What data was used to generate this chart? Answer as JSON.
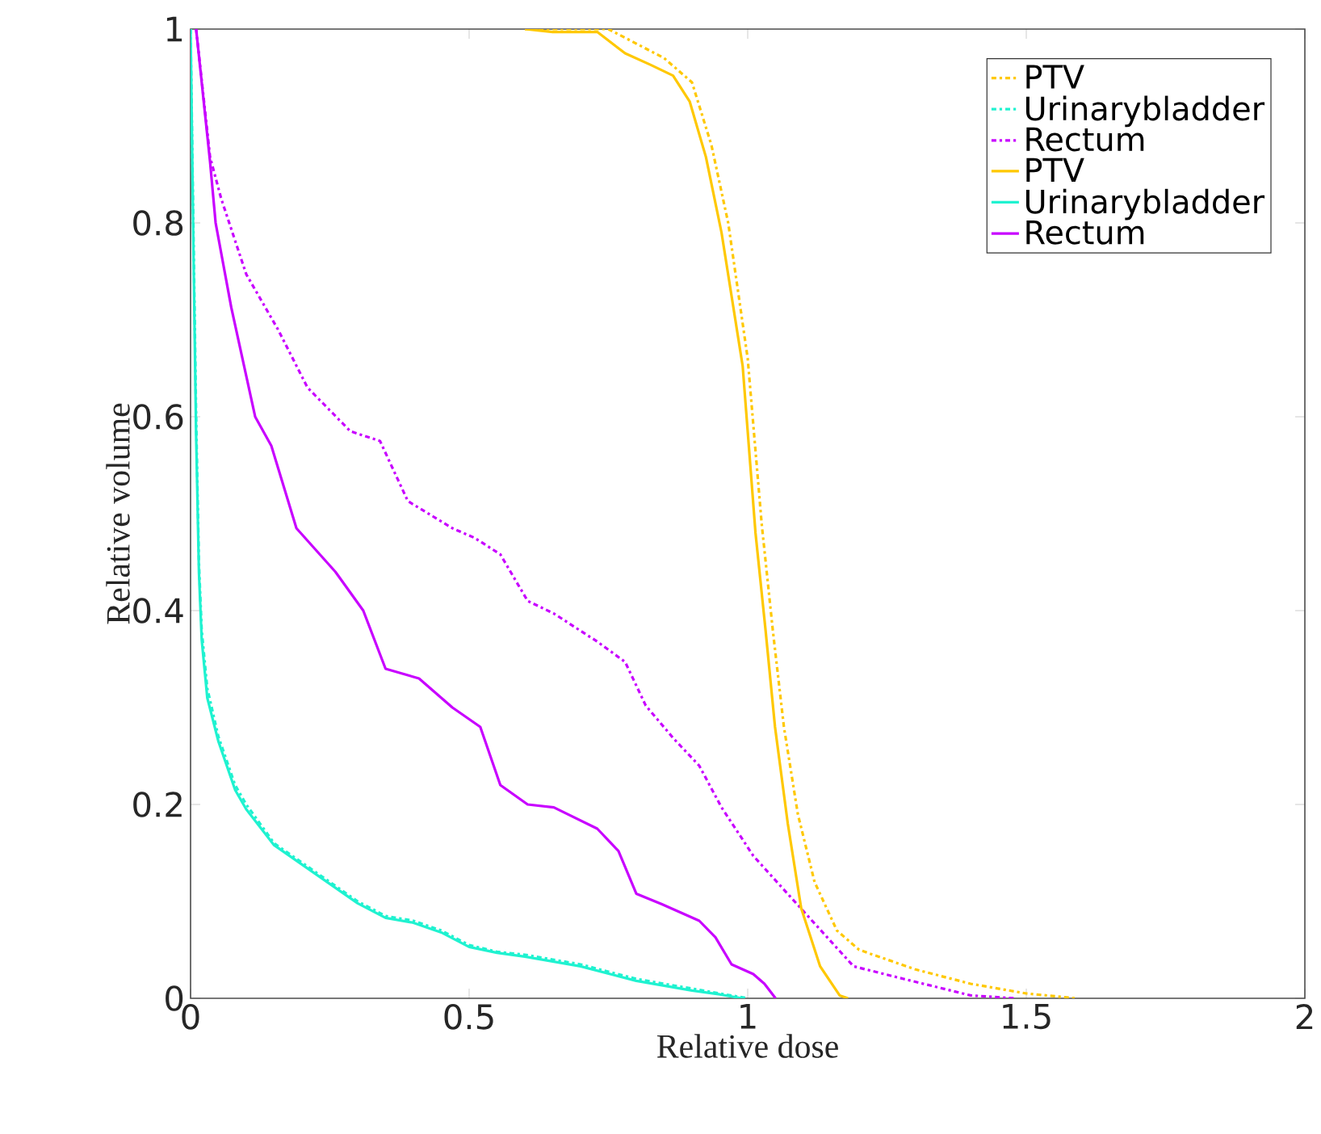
{
  "chart_data": {
    "type": "line",
    "xlabel": "Relative dose",
    "ylabel": "Relative volume",
    "xlim": [
      0,
      2
    ],
    "ylim": [
      0,
      1
    ],
    "xticks": [
      0,
      0.5,
      1,
      1.5,
      2
    ],
    "yticks": [
      0,
      0.2,
      0.4,
      0.6,
      0.8,
      1
    ],
    "grid": false,
    "legend": "top right",
    "marker": "none",
    "series": [
      {
        "name": "PTV",
        "color": "#ffc800",
        "line_style": "dashed",
        "x": [
          0.6,
          0.75,
          0.8,
          0.85,
          0.9,
          0.935,
          0.965,
          1.0,
          1.025,
          1.045,
          1.065,
          1.09,
          1.12,
          1.16,
          1.2,
          1.3,
          1.4,
          1.5,
          1.59
        ],
        "values": [
          1,
          1,
          0.985,
          0.97,
          0.945,
          0.88,
          0.8,
          0.66,
          0.49,
          0.38,
          0.28,
          0.19,
          0.12,
          0.07,
          0.05,
          0.03,
          0.015,
          0.005,
          0
        ]
      },
      {
        "name": "Urinarybladder",
        "color": "#1ff2d0",
        "line_style": "dashed",
        "x": [
          0,
          0.005,
          0.01,
          0.015,
          0.02,
          0.03,
          0.05,
          0.08,
          0.1,
          0.15,
          0.2,
          0.25,
          0.3,
          0.35,
          0.4,
          0.45,
          0.5,
          0.55,
          0.6,
          0.7,
          0.8,
          0.9,
          0.95,
          1.0
        ],
        "values": [
          1,
          0.8,
          0.6,
          0.45,
          0.38,
          0.32,
          0.27,
          0.22,
          0.2,
          0.16,
          0.14,
          0.12,
          0.1,
          0.085,
          0.08,
          0.07,
          0.055,
          0.048,
          0.045,
          0.035,
          0.02,
          0.01,
          0.005,
          0
        ]
      },
      {
        "name": "Rectum",
        "color": "#c800ff",
        "line_style": "dashed",
        "x": [
          0.01,
          0.035,
          0.055,
          0.1,
          0.157,
          0.21,
          0.287,
          0.34,
          0.39,
          0.47,
          0.51,
          0.556,
          0.605,
          0.652,
          0.73,
          0.78,
          0.817,
          0.867,
          0.913,
          0.953,
          1.01,
          1.084,
          1.19,
          1.28,
          1.4,
          1.48
        ],
        "values": [
          1,
          0.868,
          0.825,
          0.747,
          0.69,
          0.63,
          0.585,
          0.575,
          0.513,
          0.485,
          0.475,
          0.458,
          0.41,
          0.397,
          0.368,
          0.347,
          0.302,
          0.268,
          0.24,
          0.197,
          0.147,
          0.1,
          0.033,
          0.02,
          0.003,
          0
        ]
      },
      {
        "name": "PTV",
        "color": "#ffc800",
        "line_style": "solid",
        "x": [
          0.6,
          0.65,
          0.73,
          0.78,
          0.826,
          0.866,
          0.896,
          0.925,
          0.953,
          0.991,
          1.014,
          1.032,
          1.049,
          1.072,
          1.096,
          1.13,
          1.165,
          1.18
        ],
        "values": [
          1,
          0.997,
          0.997,
          0.975,
          0.963,
          0.952,
          0.925,
          0.868,
          0.79,
          0.652,
          0.48,
          0.38,
          0.28,
          0.18,
          0.093,
          0.033,
          0.003,
          0
        ]
      },
      {
        "name": "Urinarybladder",
        "color": "#1ff2d0",
        "line_style": "solid",
        "x": [
          0,
          0.005,
          0.01,
          0.015,
          0.02,
          0.03,
          0.05,
          0.08,
          0.1,
          0.15,
          0.2,
          0.25,
          0.3,
          0.35,
          0.4,
          0.45,
          0.5,
          0.55,
          0.6,
          0.7,
          0.8,
          0.9,
          0.95,
          0.99
        ],
        "values": [
          1,
          0.78,
          0.58,
          0.44,
          0.37,
          0.31,
          0.265,
          0.215,
          0.195,
          0.158,
          0.138,
          0.118,
          0.098,
          0.083,
          0.078,
          0.068,
          0.053,
          0.047,
          0.043,
          0.033,
          0.018,
          0.008,
          0.004,
          0
        ]
      },
      {
        "name": "Rectum",
        "color": "#c800ff",
        "line_style": "solid",
        "x": [
          0.01,
          0.035,
          0.045,
          0.073,
          0.116,
          0.145,
          0.19,
          0.26,
          0.31,
          0.35,
          0.41,
          0.47,
          0.52,
          0.556,
          0.605,
          0.652,
          0.73,
          0.768,
          0.8,
          0.846,
          0.913,
          0.942,
          0.971,
          1.01,
          1.03,
          1.05
        ],
        "values": [
          1,
          0.863,
          0.8,
          0.713,
          0.6,
          0.57,
          0.485,
          0.44,
          0.4,
          0.34,
          0.33,
          0.3,
          0.28,
          0.22,
          0.2,
          0.197,
          0.175,
          0.152,
          0.108,
          0.097,
          0.08,
          0.063,
          0.035,
          0.025,
          0.015,
          0
        ]
      }
    ]
  }
}
